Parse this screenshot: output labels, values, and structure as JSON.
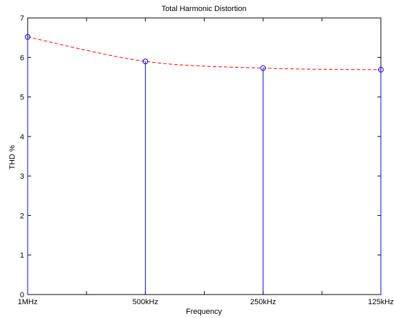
{
  "chart_data": {
    "type": "stem",
    "title": "Total Harmonic Distortion",
    "xlabel": "Frequency",
    "ylabel": "THD %",
    "categories": [
      "1MHz",
      "500kHz",
      "250kHz",
      "125kHz"
    ],
    "values": [
      6.52,
      5.9,
      5.73,
      5.69
    ],
    "ylim": [
      0,
      7
    ],
    "yticks": [
      0,
      1,
      2,
      3,
      4,
      5,
      6,
      7
    ],
    "grid": false,
    "colors": {
      "stem": "#0000ff",
      "marker": "#0000ff",
      "trend": "#ff0000"
    }
  }
}
